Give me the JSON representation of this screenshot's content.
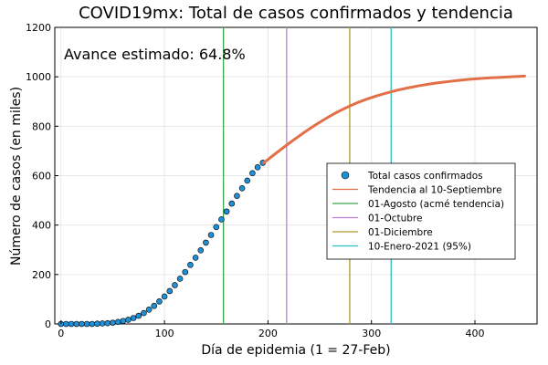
{
  "chart_data": {
    "type": "line",
    "title": "COVID19mx: Total de casos confirmados y tendencia",
    "xlabel": "Día de epidemia (1 = 27-Feb)",
    "ylabel": "Número de casos (en miles)",
    "xlim": [
      -6,
      460
    ],
    "ylim": [
      0,
      1200
    ],
    "xticks": [
      0,
      100,
      200,
      300,
      400
    ],
    "yticks": [
      0,
      200,
      400,
      600,
      800,
      1000,
      1200
    ],
    "grid": true,
    "legend_position": "center-right",
    "annotation": "Avance estimado: 64.8%",
    "series": [
      {
        "name": "Total casos confirmados",
        "kind": "scatter",
        "color": "#1f8fd6",
        "x": [
          0,
          5,
          10,
          15,
          20,
          25,
          30,
          35,
          40,
          45,
          50,
          55,
          60,
          65,
          70,
          75,
          80,
          85,
          90,
          95,
          100,
          105,
          110,
          115,
          120,
          125,
          130,
          135,
          140,
          145,
          150,
          155,
          160,
          165,
          170,
          175,
          180,
          185,
          190,
          195
        ],
        "y": [
          0,
          0,
          0,
          0,
          0,
          0,
          0,
          1,
          2,
          3,
          5,
          8,
          12,
          17,
          24,
          33,
          44,
          58,
          73,
          91,
          111,
          133,
          157,
          183,
          210,
          239,
          268,
          298,
          329,
          360,
          392,
          423,
          455,
          487,
          518,
          549,
          580,
          610,
          634,
          652
        ]
      },
      {
        "name": "Tendencia al 10-Septiembre",
        "kind": "line",
        "color": "#e26f46",
        "x": [
          196,
          205,
          215,
          225,
          235,
          245,
          255,
          265,
          275,
          285,
          295,
          305,
          315,
          325,
          335,
          345,
          355,
          365,
          375,
          385,
          395,
          405,
          415,
          425,
          435,
          448
        ],
        "y": [
          652,
          682,
          714,
          745,
          775,
          803,
          829,
          853,
          874,
          893,
          909,
          923,
          935,
          946,
          955,
          963,
          970,
          976,
          981,
          986,
          990,
          993,
          996,
          998,
          1000,
          1003
        ]
      }
    ],
    "vlines": [
      {
        "name": "01-Agosto (acmé tendencia)",
        "x": 157,
        "color": "#3da44d"
      },
      {
        "name": "01-Octubre",
        "x": 218,
        "color": "#c27fd6"
      },
      {
        "name": "01-Diciembre",
        "x": 279,
        "color": "#ad9a2f"
      },
      {
        "name": "10-Enero-2021 (95%)",
        "x": 319,
        "color": "#2bbfbf"
      }
    ]
  }
}
